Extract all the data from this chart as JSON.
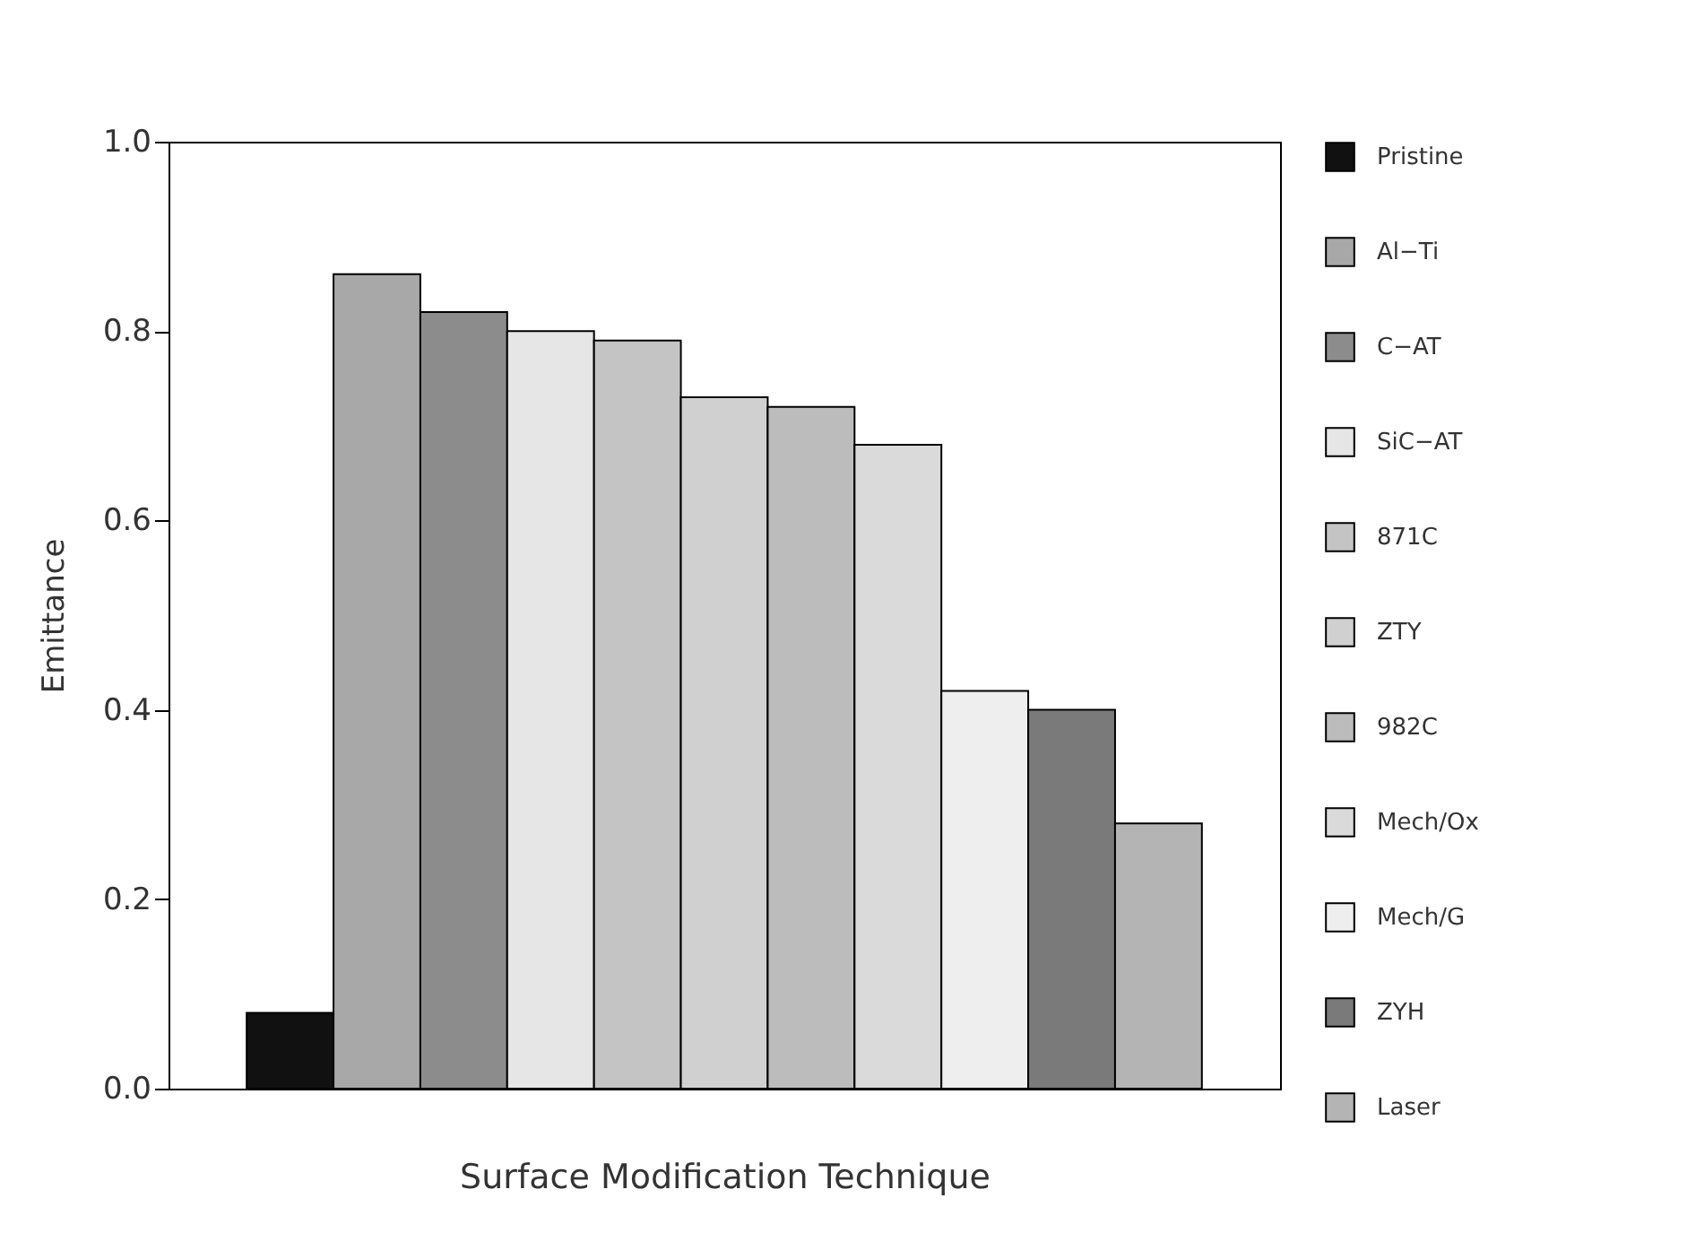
{
  "chart_data": {
    "type": "bar",
    "xlabel": "Surface Modification Technique",
    "ylabel": "Emittance",
    "stacked": true,
    "categories": [
      null,
      null,
      null,
      null,
      null,
      null,
      null,
      null,
      null,
      null,
      null
    ],
    "series": [
      {
        "name": "Pristine",
        "color": "#111111",
        "values": [
          0.08,
          null,
          null,
          null,
          null,
          null,
          null,
          null,
          null,
          null,
          null
        ]
      },
      {
        "name": "Al−Ti",
        "color": "#a8a8a8",
        "values": [
          null,
          0.86,
          null,
          null,
          null,
          null,
          null,
          null,
          null,
          null,
          null
        ]
      },
      {
        "name": "C−AT",
        "color": "#8c8c8c",
        "values": [
          null,
          null,
          0.82,
          null,
          null,
          null,
          null,
          null,
          null,
          null,
          null
        ]
      },
      {
        "name": "SiC−AT",
        "color": "#e6e6e6",
        "values": [
          null,
          null,
          null,
          0.8,
          null,
          null,
          null,
          null,
          null,
          null,
          null
        ]
      },
      {
        "name": "871C",
        "color": "#c4c4c4",
        "values": [
          null,
          null,
          null,
          null,
          0.79,
          null,
          null,
          null,
          null,
          null,
          null
        ]
      },
      {
        "name": "ZTY",
        "color": "#d0d0d0",
        "values": [
          null,
          null,
          null,
          null,
          null,
          0.73,
          null,
          null,
          null,
          null,
          null
        ]
      },
      {
        "name": "982C",
        "color": "#bcbcbc",
        "values": [
          null,
          null,
          null,
          null,
          null,
          null,
          0.72,
          null,
          null,
          null,
          null
        ]
      },
      {
        "name": "Mech/Ox",
        "color": "#dadada",
        "values": [
          null,
          null,
          null,
          null,
          null,
          null,
          null,
          0.68,
          null,
          null,
          null
        ]
      },
      {
        "name": "Mech/G",
        "color": "#eeeeee",
        "values": [
          null,
          null,
          null,
          null,
          null,
          null,
          null,
          null,
          0.42,
          null,
          null
        ]
      },
      {
        "name": "ZYH",
        "color": "#7a7a7a",
        "values": [
          null,
          null,
          null,
          null,
          null,
          null,
          null,
          null,
          null,
          0.4,
          null
        ]
      },
      {
        "name": "Laser",
        "color": "#b4b4b4",
        "values": [
          null,
          null,
          null,
          null,
          null,
          null,
          null,
          null,
          null,
          null,
          0.28
        ]
      }
    ],
    "ylim": [
      0,
      1
    ],
    "yticks": [
      {
        "value": 0,
        "label": "0.0"
      },
      0.2,
      0.4,
      0.6,
      0.8,
      {
        "value": 1,
        "label": "1.0"
      }
    ],
    "tick_labels": "y",
    "legend": "right"
  }
}
